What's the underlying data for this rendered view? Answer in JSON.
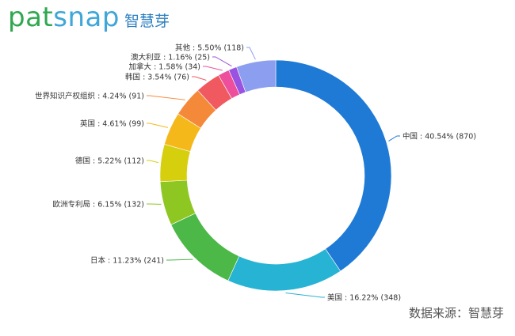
{
  "header": {
    "logo_part1": "pat",
    "logo_part2": "snap",
    "logo_cn": "智慧芽"
  },
  "source_note": "数据来源：智慧芽",
  "colors": {
    "logo_green": "#2fa84f",
    "logo_blue": "#3fa6d8"
  },
  "chart_data": {
    "type": "pie",
    "donut": true,
    "slices": [
      {
        "label": "中国 : 40.54% (870)",
        "name": "中国",
        "percent": 40.54,
        "count": 870,
        "color": "#1f7ad6"
      },
      {
        "label": "美国 : 16.22% (348)",
        "name": "美国",
        "percent": 16.22,
        "count": 348,
        "color": "#27b3d3"
      },
      {
        "label": "日本 : 11.23% (241)",
        "name": "日本",
        "percent": 11.23,
        "count": 241,
        "color": "#4cb848"
      },
      {
        "label": "欧洲专利局 : 6.15% (132)",
        "name": "欧洲专利局",
        "percent": 6.15,
        "count": 132,
        "color": "#8ec722"
      },
      {
        "label": "德国 : 5.22% (112)",
        "name": "德国",
        "percent": 5.22,
        "count": 112,
        "color": "#d6cf0e"
      },
      {
        "label": "英国 : 4.61% (99)",
        "name": "英国",
        "percent": 4.61,
        "count": 99,
        "color": "#f5b81b"
      },
      {
        "label": "世界知识产权组织 : 4.24% (91)",
        "name": "世界知识产权组织",
        "percent": 4.24,
        "count": 91,
        "color": "#f5893a"
      },
      {
        "label": "韩国 : 3.54% (76)",
        "name": "韩国",
        "percent": 3.54,
        "count": 76,
        "color": "#f0595f"
      },
      {
        "label": "加拿大 : 1.58% (34)",
        "name": "加拿大",
        "percent": 1.58,
        "count": 34,
        "color": "#ee4f9c"
      },
      {
        "label": "澳大利亚 : 1.16% (25)",
        "name": "澳大利亚",
        "percent": 1.16,
        "count": 25,
        "color": "#9a52e0"
      },
      {
        "label": "其他 : 5.50% (118)",
        "name": "其他",
        "percent": 5.5,
        "count": 118,
        "color": "#8c9ef0"
      }
    ]
  }
}
